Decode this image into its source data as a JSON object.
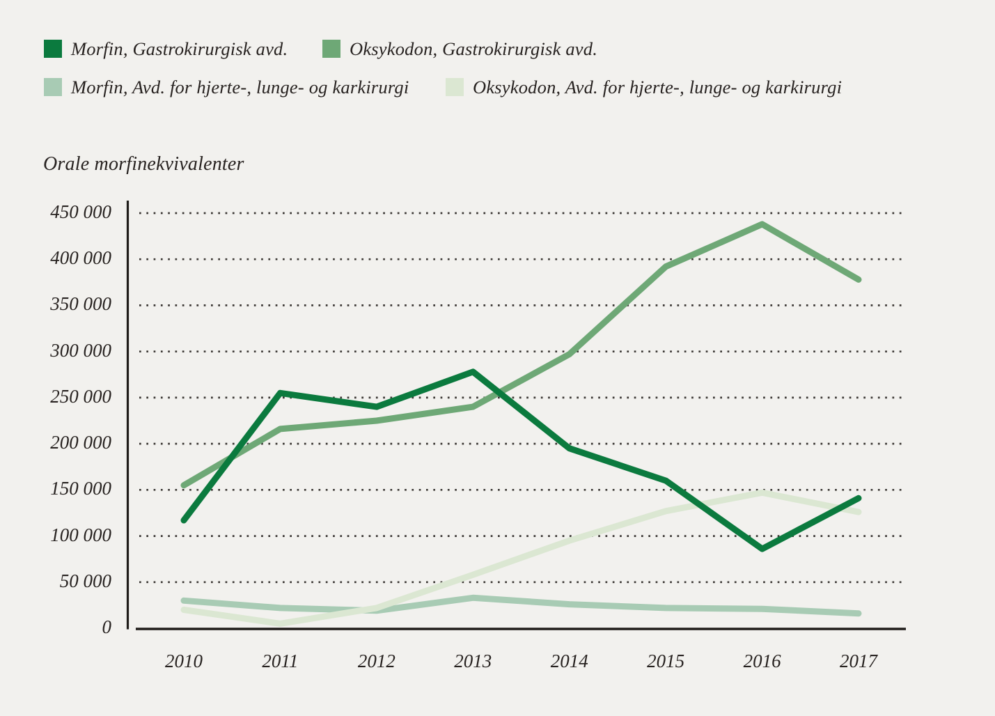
{
  "title": "Orale morfinekvivalenter",
  "colors": {
    "background": "#f2f1ee",
    "text": "#272220",
    "grid_dots": "#3a3633",
    "axis": "#1f1c19"
  },
  "legend": {
    "items": [
      {
        "label": "Morfin, Gastrokirurgisk avd.",
        "color": "#0b7a3e"
      },
      {
        "label": "Oksykodon, Gastrokirurgisk avd.",
        "color": "#6ea876"
      },
      {
        "label": "Morfin, Avd. for hjerte-, lunge- og karkirurgi",
        "color": "#a8cbb4"
      },
      {
        "label": "Oksykodon, Avd. for hjerte-, lunge- og karkirurgi",
        "color": "#dbe7d2"
      }
    ]
  },
  "chart_data": {
    "type": "line",
    "title": "Orale morfinekvivalenter",
    "x": [
      2010,
      2011,
      2012,
      2013,
      2014,
      2015,
      2016,
      2017
    ],
    "series": [
      {
        "name": "Morfin, Gastrokirurgisk avd.",
        "color": "#0b7a3e",
        "values": [
          117000,
          255000,
          240000,
          278000,
          195000,
          160000,
          86000,
          141000
        ]
      },
      {
        "name": "Oksykodon, Gastrokirurgisk avd.",
        "color": "#6ea876",
        "values": [
          155000,
          216000,
          225000,
          240000,
          297000,
          392000,
          438000,
          378000
        ]
      },
      {
        "name": "Morfin, Avd. for hjerte-, lunge- og karkirurgi",
        "color": "#a8cbb4",
        "values": [
          30000,
          22000,
          19000,
          33000,
          26000,
          22000,
          21000,
          16000
        ]
      },
      {
        "name": "Oksykodon, Avd. for hjerte-, lunge- og karkirurgi",
        "color": "#dbe7d2",
        "values": [
          20000,
          5000,
          22000,
          58000,
          95000,
          127000,
          147000,
          126000
        ]
      }
    ],
    "ylabel": "Orale morfinekvivalenter",
    "xlabel": "",
    "ylim": [
      0,
      450000
    ],
    "ytick_step": 50000,
    "ytick_labels": [
      "0",
      "50 000",
      "100 000",
      "150 000",
      "200 000",
      "250 000",
      "300 000",
      "350 000",
      "400 000",
      "450 000"
    ],
    "grid": "horizontal-dotted",
    "legend_position": "top-left"
  }
}
